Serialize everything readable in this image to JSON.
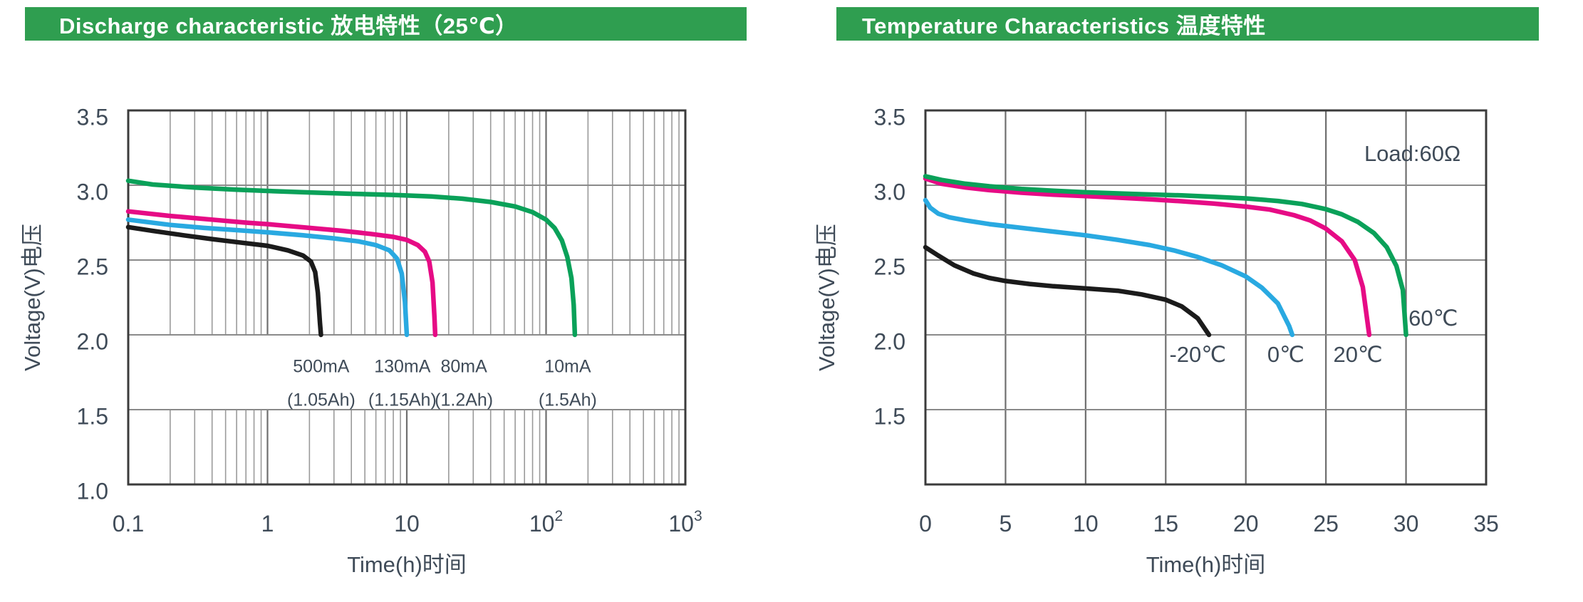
{
  "colors": {
    "header_bg": "#2f9e50",
    "header_text": "#ffffff",
    "text": "#3f4b58",
    "frame": "#3b3b3b",
    "grid_minor": "#9a9a9a",
    "grid_major": "#6f6f6f",
    "grid_h": "#8a8a8a",
    "curve_black": "#1b1b1b",
    "curve_blue": "#29a9e1",
    "curve_pink": "#e60b85",
    "curve_green": "#0aa159"
  },
  "headers": [
    {
      "title": "Discharge characteristic  放电特性（25℃）"
    },
    {
      "title": "Temperature Characteristics  温度特性"
    }
  ],
  "chart_data": [
    {
      "type": "line",
      "title": "Discharge characteristic 放电特性（25℃）",
      "xlabel": "Time(h)时间",
      "ylabel": "Voltage(V)电压",
      "x_scale": "log",
      "xlim": [
        0.1,
        1000
      ],
      "ylim": [
        1.0,
        3.5
      ],
      "grid": true,
      "y_ticks": [
        {
          "v": 3.5,
          "label": "3.5"
        },
        {
          "v": 3.0,
          "label": "3.0"
        },
        {
          "v": 2.5,
          "label": "2.5"
        },
        {
          "v": 2.0,
          "label": "2.0"
        },
        {
          "v": 1.5,
          "label": "1.5"
        },
        {
          "v": 1.0,
          "label": "1.0"
        }
      ],
      "x_ticks": [
        {
          "t": 0.1,
          "label": "0.1"
        },
        {
          "t": 1,
          "label": "1"
        },
        {
          "t": 10,
          "label": "10"
        },
        {
          "t": 100,
          "label": "10",
          "sup": "2"
        },
        {
          "t": 1000,
          "label": "10",
          "sup": "3"
        }
      ],
      "series": [
        {
          "name": "500mA",
          "capacity": "(1.05Ah)",
          "color": "#1b1b1b",
          "points": [
            [
              0.1,
              2.72
            ],
            [
              0.15,
              2.695
            ],
            [
              0.25,
              2.665
            ],
            [
              0.4,
              2.64
            ],
            [
              0.6,
              2.62
            ],
            [
              1,
              2.595
            ],
            [
              1.4,
              2.565
            ],
            [
              1.8,
              2.53
            ],
            [
              2.05,
              2.49
            ],
            [
              2.2,
              2.42
            ],
            [
              2.3,
              2.28
            ],
            [
              2.38,
              2.08
            ],
            [
              2.42,
              2.0
            ]
          ]
        },
        {
          "name": "130mA",
          "capacity": "(1.15Ah)",
          "color": "#29a9e1",
          "points": [
            [
              0.1,
              2.77
            ],
            [
              0.2,
              2.735
            ],
            [
              0.35,
              2.715
            ],
            [
              0.6,
              2.7
            ],
            [
              1,
              2.685
            ],
            [
              1.8,
              2.665
            ],
            [
              3,
              2.645
            ],
            [
              4.5,
              2.625
            ],
            [
              6,
              2.6
            ],
            [
              7.5,
              2.565
            ],
            [
              8.5,
              2.51
            ],
            [
              9.2,
              2.41
            ],
            [
              9.7,
              2.22
            ],
            [
              10,
              2.0
            ]
          ]
        },
        {
          "name": "80mA",
          "capacity": "(1.2Ah)",
          "color": "#e60b85",
          "points": [
            [
              0.1,
              2.825
            ],
            [
              0.2,
              2.795
            ],
            [
              0.4,
              2.77
            ],
            [
              0.7,
              2.75
            ],
            [
              1,
              2.74
            ],
            [
              2,
              2.715
            ],
            [
              3.5,
              2.695
            ],
            [
              5.5,
              2.675
            ],
            [
              8,
              2.655
            ],
            [
              10,
              2.635
            ],
            [
              12,
              2.6
            ],
            [
              13.5,
              2.555
            ],
            [
              14.5,
              2.49
            ],
            [
              15.3,
              2.35
            ],
            [
              15.8,
              2.12
            ],
            [
              16,
              2.0
            ]
          ]
        },
        {
          "name": "10mA",
          "capacity": "(1.5Ah)",
          "color": "#0aa159",
          "points": [
            [
              0.1,
              3.03
            ],
            [
              0.15,
              3.005
            ],
            [
              0.3,
              2.985
            ],
            [
              0.6,
              2.97
            ],
            [
              1,
              2.962
            ],
            [
              2,
              2.952
            ],
            [
              4,
              2.943
            ],
            [
              8,
              2.935
            ],
            [
              15,
              2.925
            ],
            [
              25,
              2.91
            ],
            [
              40,
              2.888
            ],
            [
              60,
              2.858
            ],
            [
              80,
              2.82
            ],
            [
              100,
              2.77
            ],
            [
              115,
              2.715
            ],
            [
              130,
              2.63
            ],
            [
              142,
              2.52
            ],
            [
              152,
              2.38
            ],
            [
              158,
              2.2
            ],
            [
              161,
              2.0
            ]
          ]
        }
      ],
      "annotations": [
        {
          "text": "500mA",
          "t": 2.43,
          "v": 1.781
        },
        {
          "text": "130mA",
          "t": 9.3,
          "v": 1.781
        },
        {
          "text": "80mA",
          "t": 25.7,
          "v": 1.781
        },
        {
          "text": "10mA",
          "t": 143,
          "v": 1.781
        },
        {
          "text": "(1.05Ah)",
          "t": 2.43,
          "v": 1.557
        },
        {
          "text": "(1.15Ah)",
          "t": 9.3,
          "v": 1.557
        },
        {
          "text": "(1.2Ah)",
          "t": 25.7,
          "v": 1.557
        },
        {
          "text": "(1.5Ah)",
          "t": 143,
          "v": 1.557
        }
      ]
    },
    {
      "type": "line",
      "title": "Temperature Characteristics 温度特性",
      "xlabel": "Time(h)时间",
      "ylabel": "Voltage(V)电压",
      "x_scale": "linear",
      "xlim": [
        0,
        35
      ],
      "ylim": [
        1.0,
        3.5
      ],
      "grid": true,
      "y_ticks": [
        {
          "v": 3.5,
          "label": "3.5"
        },
        {
          "v": 3.0,
          "label": "3.0"
        },
        {
          "v": 2.5,
          "label": "2.5"
        },
        {
          "v": 2.0,
          "label": "2.0"
        },
        {
          "v": 1.5,
          "label": "1.5"
        }
      ],
      "x_ticks": [
        {
          "t": 0,
          "label": "0"
        },
        {
          "t": 5,
          "label": "5"
        },
        {
          "t": 10,
          "label": "10"
        },
        {
          "t": 15,
          "label": "15"
        },
        {
          "t": 20,
          "label": "20"
        },
        {
          "t": 25,
          "label": "25"
        },
        {
          "t": 30,
          "label": "30"
        },
        {
          "t": 35,
          "label": "35"
        }
      ],
      "series": [
        {
          "name": "-20℃",
          "color": "#1b1b1b",
          "points": [
            [
              0,
              2.585
            ],
            [
              0.8,
              2.53
            ],
            [
              1.8,
              2.465
            ],
            [
              3,
              2.41
            ],
            [
              4,
              2.38
            ],
            [
              5,
              2.36
            ],
            [
              6.5,
              2.34
            ],
            [
              8,
              2.325
            ],
            [
              10,
              2.31
            ],
            [
              12,
              2.295
            ],
            [
              13.5,
              2.27
            ],
            [
              15,
              2.235
            ],
            [
              16,
              2.19
            ],
            [
              17,
              2.11
            ],
            [
              17.7,
              2.0
            ]
          ]
        },
        {
          "name": "0℃",
          "color": "#29a9e1",
          "points": [
            [
              0,
              2.9
            ],
            [
              0.3,
              2.85
            ],
            [
              0.8,
              2.81
            ],
            [
              1.5,
              2.785
            ],
            [
              2.5,
              2.765
            ],
            [
              4,
              2.74
            ],
            [
              6,
              2.715
            ],
            [
              8,
              2.69
            ],
            [
              10,
              2.665
            ],
            [
              12,
              2.635
            ],
            [
              14,
              2.6
            ],
            [
              15.5,
              2.565
            ],
            [
              17,
              2.52
            ],
            [
              18.5,
              2.465
            ],
            [
              20,
              2.39
            ],
            [
              21,
              2.315
            ],
            [
              22,
              2.21
            ],
            [
              22.7,
              2.06
            ],
            [
              22.9,
              2.0
            ]
          ]
        },
        {
          "name": "20℃",
          "color": "#e60b85",
          "points": [
            [
              0,
              3.045
            ],
            [
              1,
              3.01
            ],
            [
              2.5,
              2.985
            ],
            [
              4,
              2.967
            ],
            [
              6,
              2.95
            ],
            [
              8,
              2.937
            ],
            [
              10,
              2.927
            ],
            [
              12,
              2.917
            ],
            [
              14,
              2.906
            ],
            [
              16,
              2.893
            ],
            [
              18,
              2.877
            ],
            [
              20,
              2.857
            ],
            [
              21.5,
              2.837
            ],
            [
              23,
              2.8
            ],
            [
              24,
              2.765
            ],
            [
              25,
              2.71
            ],
            [
              26,
              2.625
            ],
            [
              26.8,
              2.5
            ],
            [
              27.3,
              2.32
            ],
            [
              27.7,
              2.0
            ]
          ]
        },
        {
          "name": "60℃",
          "color": "#0aa159",
          "points": [
            [
              0,
              3.06
            ],
            [
              1,
              3.035
            ],
            [
              2.5,
              3.01
            ],
            [
              4,
              2.993
            ],
            [
              6,
              2.975
            ],
            [
              8,
              2.963
            ],
            [
              10,
              2.953
            ],
            [
              13,
              2.942
            ],
            [
              16,
              2.932
            ],
            [
              18,
              2.923
            ],
            [
              20,
              2.912
            ],
            [
              22,
              2.895
            ],
            [
              23.5,
              2.875
            ],
            [
              25,
              2.84
            ],
            [
              26,
              2.805
            ],
            [
              27,
              2.755
            ],
            [
              28,
              2.68
            ],
            [
              28.8,
              2.585
            ],
            [
              29.4,
              2.46
            ],
            [
              29.8,
              2.3
            ],
            [
              30,
              2.0
            ]
          ]
        }
      ],
      "annotations": [
        {
          "text": "-20℃",
          "t": 17.0,
          "v": 1.858
        },
        {
          "text": "0℃",
          "t": 22.5,
          "v": 1.858
        },
        {
          "text": "20℃",
          "t": 27.0,
          "v": 1.858
        },
        {
          "text": "60℃",
          "t": 31.7,
          "v": 2.1
        },
        {
          "text": "Load:60Ω",
          "t": 30.4,
          "v": 3.2
        }
      ]
    }
  ]
}
